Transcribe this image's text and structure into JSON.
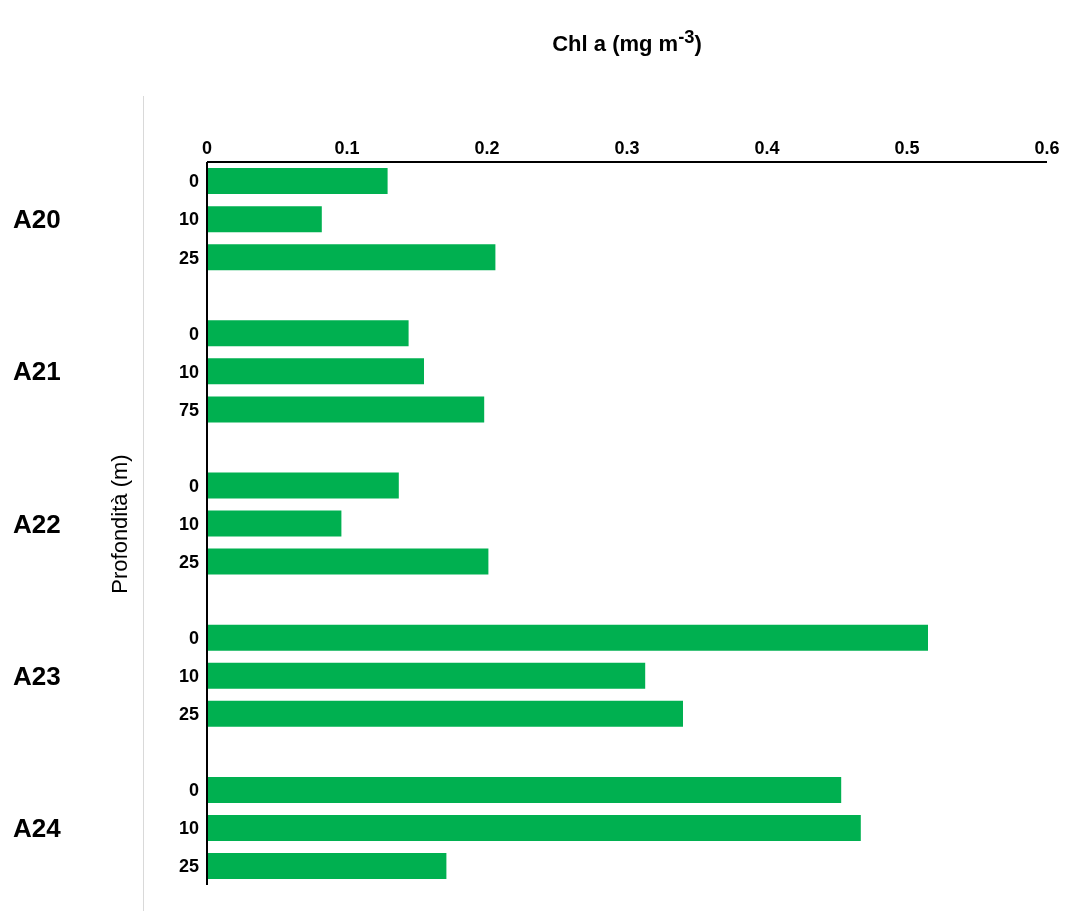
{
  "chart_data": {
    "type": "bar",
    "orientation": "horizontal",
    "xlabel": "Chl a (mg m$^{-3}$)",
    "ylabel": "Profondità (m)",
    "categories": [
      "0",
      "10",
      "25",
      null,
      "0",
      "10",
      "75",
      null,
      "0",
      "10",
      "25",
      null,
      "0",
      "10",
      "25",
      null,
      "0",
      "10",
      "25"
    ],
    "values": [
      0.129,
      0.082,
      0.206,
      null,
      0.144,
      0.155,
      0.198,
      null,
      0.137,
      0.096,
      0.201,
      null,
      0.515,
      0.313,
      0.34,
      null,
      0.453,
      0.467,
      0.171
    ],
    "color": "#00b050",
    "xlim": [
      0,
      0.6
    ],
    "xticks": [
      0,
      0.1,
      0.2,
      0.3,
      0.4,
      0.5,
      0.6
    ],
    "annotations": [
      "A20",
      "A21",
      "A22",
      "A23",
      "A24"
    ],
    "grid": false
  }
}
